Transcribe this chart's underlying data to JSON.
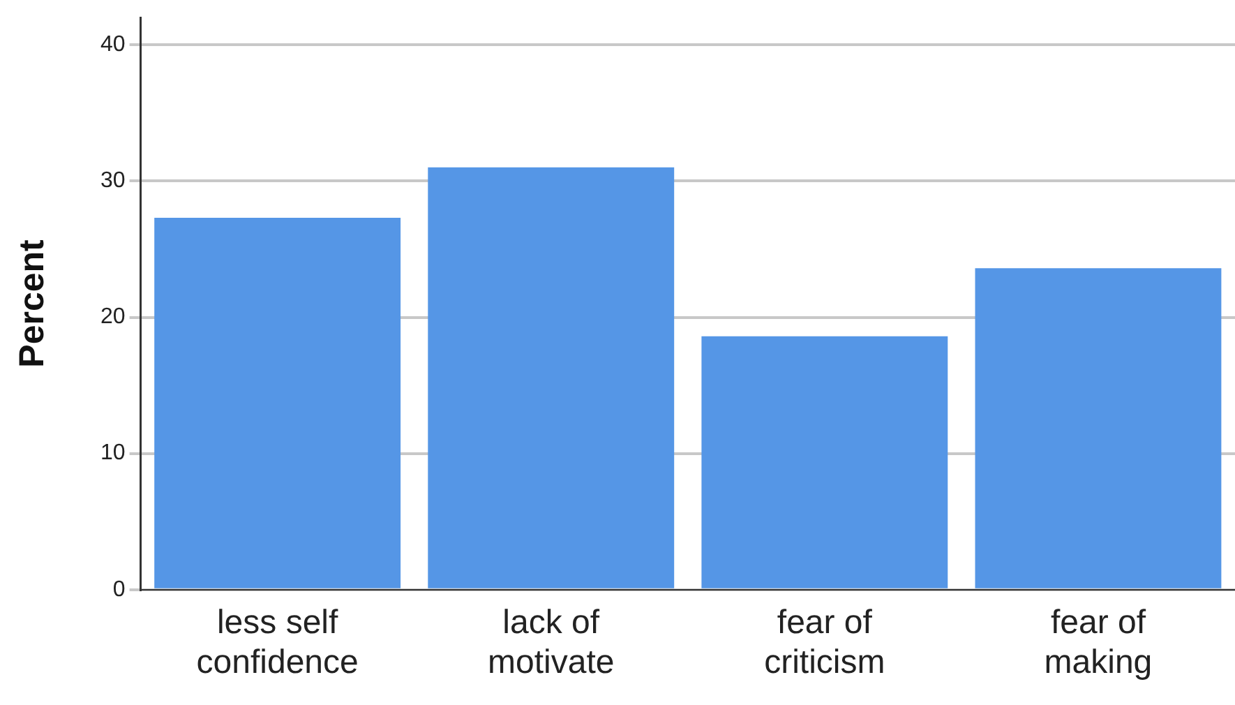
{
  "chart_data": {
    "type": "bar",
    "ylabel": "Percent",
    "categories": [
      "less self confidence",
      "lack of motivate",
      "fear of criticism",
      "fear of making"
    ],
    "values": [
      27.3,
      31.0,
      18.6,
      23.6
    ],
    "color": "#5596e6",
    "ylim": [
      0,
      42
    ],
    "yticks": [
      0,
      10,
      20,
      30,
      40
    ],
    "grid": "y",
    "legend": false
  }
}
